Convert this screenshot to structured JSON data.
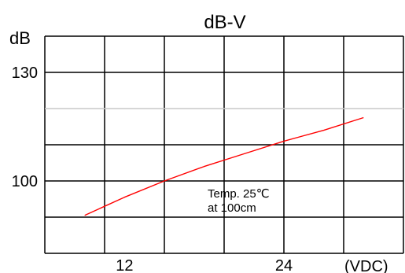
{
  "chart_data": {
    "type": "line",
    "title": "dB-V",
    "ylabel": "dB",
    "xlabel": "(VDC)",
    "xlim": [
      6,
      33
    ],
    "ylim": [
      80,
      140
    ],
    "x_ticks": [
      "12",
      "24"
    ],
    "y_ticks": [
      "100",
      "130"
    ],
    "grid": true,
    "annotation": [
      "Temp. 25℃",
      "at 100cm"
    ],
    "series": [
      {
        "x": [
          9,
          12,
          15,
          18,
          21,
          24,
          27,
          30
        ],
        "y": [
          90.5,
          95.5,
          100,
          104,
          107.5,
          111,
          114,
          117.5
        ]
      }
    ],
    "colors": {
      "line": "#ff0000",
      "grid": "#000000",
      "highlight_grid": "#c8c8c8"
    }
  }
}
